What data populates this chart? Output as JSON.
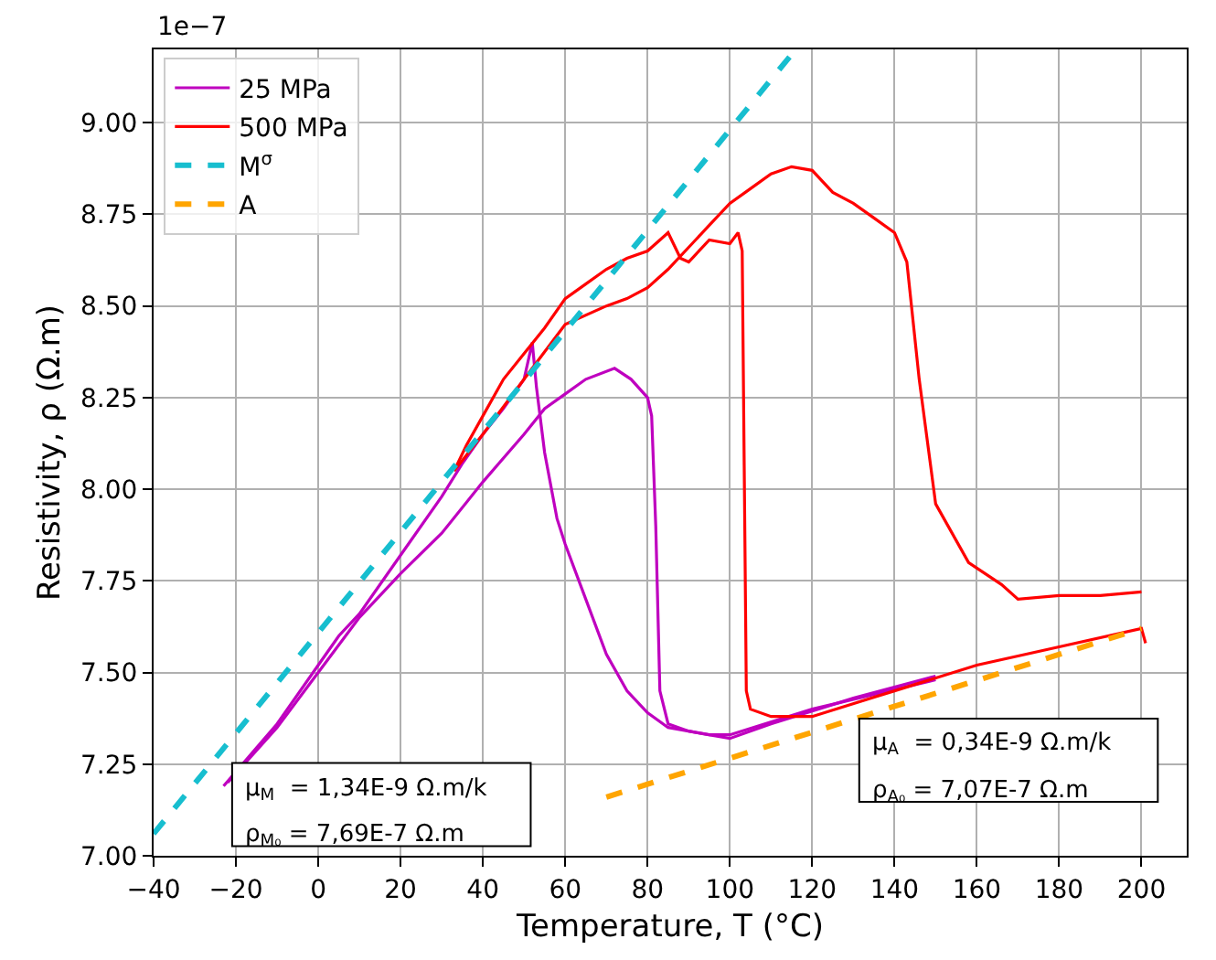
{
  "chart_data": {
    "type": "line",
    "xlabel": "Temperature, T (°C)",
    "ylabel": "Resistivity, ρ (Ω.m)",
    "xlim": [
      -40,
      211
    ],
    "ylim": [
      7.0,
      9.2
    ],
    "xticks": [
      {
        "value": -40,
        "label": "−40"
      },
      {
        "value": -20,
        "label": "−20"
      },
      0,
      20,
      40,
      60,
      80,
      100,
      120,
      140,
      160,
      180,
      200
    ],
    "yticks": [
      {
        "value": 7,
        "label": "7.00"
      },
      7.25,
      {
        "value": 7.5,
        "label": "7.50"
      },
      7.75,
      {
        "value": 8,
        "label": "8.00"
      },
      8.25,
      {
        "value": 8.5,
        "label": "8.50"
      },
      8.75,
      {
        "value": 9,
        "label": "9.00"
      }
    ],
    "grid": true,
    "legend": "top left",
    "series": [
      {
        "name": "25 MPa",
        "color": "#bf00bf",
        "line_style": "solid",
        "x": [
          -23,
          -10,
          0,
          5,
          10,
          20,
          30,
          35,
          40,
          45,
          50,
          52,
          53,
          55,
          58,
          60,
          65,
          70,
          75,
          80,
          85,
          95,
          100,
          120,
          150
        ],
        "values": [
          7.19,
          7.36,
          7.52,
          7.6,
          7.66,
          7.82,
          7.98,
          8.07,
          8.15,
          8.22,
          8.3,
          8.4,
          8.28,
          8.1,
          7.92,
          7.85,
          7.7,
          7.55,
          7.45,
          7.39,
          7.35,
          7.33,
          7.33,
          7.4,
          7.48
        ]
      },
      {
        "color": "#bf00bf",
        "line_style": "solid",
        "x": [
          150,
          130,
          110,
          100,
          90,
          85,
          83,
          82,
          81,
          80,
          76,
          72,
          65,
          60,
          55,
          50,
          40,
          30,
          20,
          10,
          0,
          -10,
          -22
        ],
        "values": [
          7.49,
          7.43,
          7.36,
          7.32,
          7.34,
          7.36,
          7.45,
          7.9,
          8.2,
          8.25,
          8.3,
          8.33,
          8.3,
          8.26,
          8.22,
          8.15,
          8.02,
          7.88,
          7.77,
          7.65,
          7.5,
          7.35,
          7.2
        ]
      },
      {
        "name": "500 MPa",
        "color": "#ff0000",
        "line_style": "solid",
        "x": [
          33,
          36,
          40,
          45,
          50,
          55,
          60,
          65,
          70,
          75,
          80,
          85,
          88,
          90,
          95,
          100,
          102,
          103,
          104,
          105,
          110,
          120,
          140,
          160,
          180,
          200,
          201
        ],
        "values": [
          8.05,
          8.12,
          8.2,
          8.3,
          8.37,
          8.44,
          8.52,
          8.56,
          8.6,
          8.63,
          8.65,
          8.7,
          8.63,
          8.62,
          8.68,
          8.67,
          8.7,
          8.65,
          7.45,
          7.4,
          7.38,
          7.38,
          7.45,
          7.52,
          7.57,
          7.62,
          7.58
        ]
      },
      {
        "color": "#ff0000",
        "line_style": "solid",
        "x": [
          200,
          190,
          180,
          170,
          166,
          158,
          150,
          146,
          143,
          140,
          135,
          130,
          125,
          120,
          115,
          110,
          105,
          100,
          95,
          90,
          85,
          80,
          75,
          70,
          60,
          50,
          40,
          33
        ],
        "values": [
          7.72,
          7.71,
          7.71,
          7.7,
          7.74,
          7.8,
          7.96,
          8.3,
          8.62,
          8.7,
          8.74,
          8.78,
          8.81,
          8.87,
          8.88,
          8.86,
          8.82,
          8.78,
          8.72,
          8.66,
          8.6,
          8.55,
          8.52,
          8.5,
          8.45,
          8.3,
          8.15,
          8.05
        ]
      },
      {
        "name": "M$^{σ}$",
        "color": "#17becf",
        "line_style": "dashed",
        "x": [
          -40,
          116
        ],
        "values": [
          7.06,
          9.2
        ]
      },
      {
        "name": "A",
        "color": "#ffa500",
        "line_style": "dashed",
        "x": [
          70,
          200
        ],
        "values": [
          7.16,
          7.62
        ]
      }
    ],
    "annotations": [
      "1e−7",
      "μ$_{M}$  = 1,34E-9 Ω.m/k",
      "ρ$_{M₀}$ = 7,69E-7 Ω.m",
      "μ$_{A}$  = 0,34E-9 Ω.m/k",
      "ρ$_{A₀}$ = 7,07E-7 Ω.m"
    ]
  }
}
